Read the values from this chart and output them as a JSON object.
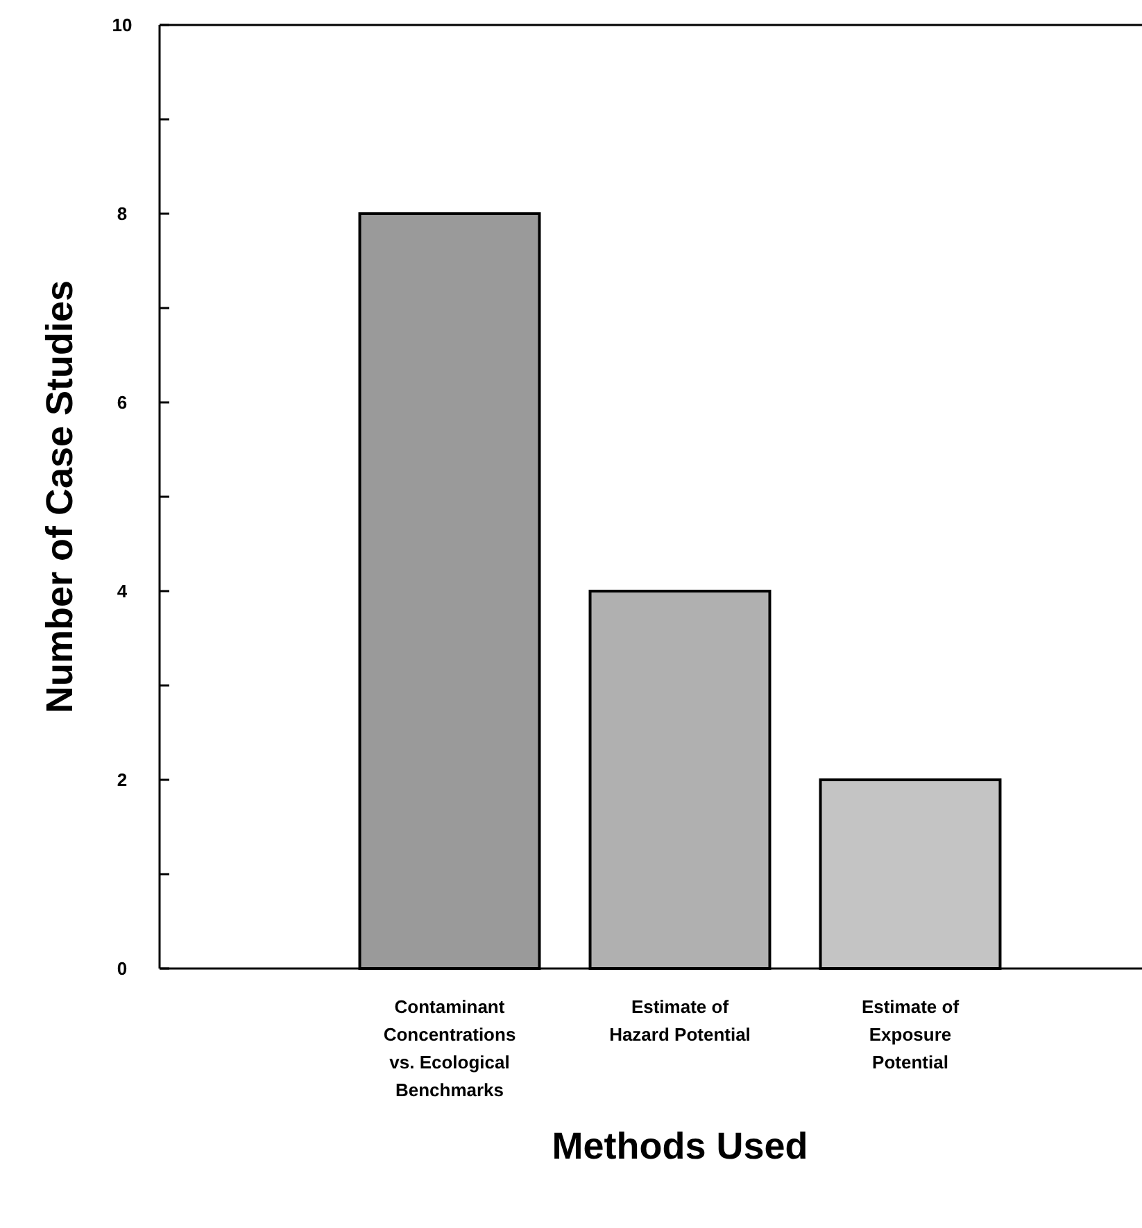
{
  "chart_data": {
    "type": "bar",
    "xlabel": "Methods Used",
    "ylabel": "Number of Case Studies",
    "categories": [
      "Contaminant\nConcentrations\nvs. Ecological\nBenchmarks",
      "Estimate of\nHazard Potential",
      "Estimate of\nExposure\nPotential"
    ],
    "values": [
      8,
      4,
      2
    ],
    "colors": [
      "#9a9a9a",
      "#b0b0b0",
      "#c4c4c4"
    ],
    "ylim": [
      0,
      10
    ],
    "yticks": [
      0,
      {
        "value": 1,
        "label": null
      },
      2,
      {
        "value": 3,
        "label": null
      },
      4,
      {
        "value": 5,
        "label": null
      },
      6,
      {
        "value": 7,
        "label": null
      },
      8,
      {
        "value": 9,
        "label": null
      },
      10
    ],
    "grid": false
  }
}
